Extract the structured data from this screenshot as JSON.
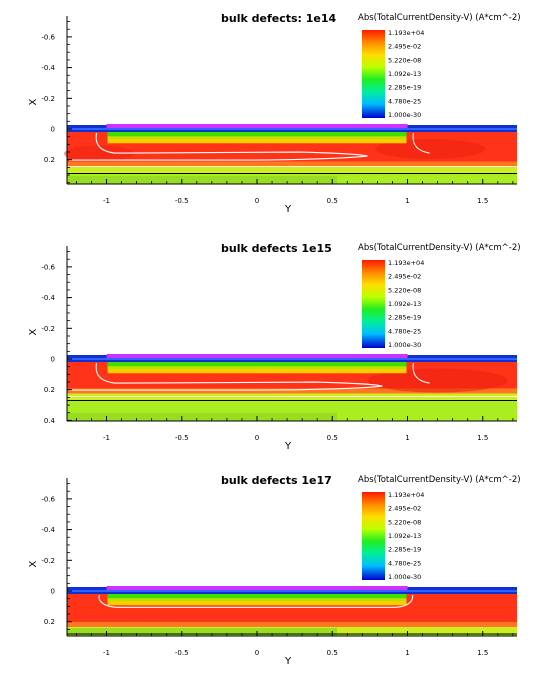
{
  "chart_data": [
    {
      "type": "heatmap",
      "title": "bulk defects: 1e14",
      "xlabel": "Y",
      "ylabel": "X",
      "colorbar_title": "Abs(TotalCurrentDensity-V) (A*cm^-2)",
      "colorbar_labels": [
        "1.193e+04",
        "2.495e-02",
        "5.220e-08",
        "1.092e-13",
        "2.285e-19",
        "4.780e-25",
        "1.000e-30"
      ],
      "x_ticks": [
        "-1",
        "-0.5",
        "0",
        "0.5",
        "1",
        "1.5"
      ],
      "y_ticks": [
        "-0.6",
        "-0.4",
        "-0.2",
        "0",
        "0.2"
      ],
      "xlim": [
        -1.3,
        1.7
      ],
      "ylim": [
        -0.75,
        0.35
      ],
      "contact_y": [
        -1.0,
        1.0
      ],
      "channel_bottom_x": 0.08,
      "contour_depth_x": 0.17,
      "contour_tip_y": 0.68,
      "bottom_line_x": 0.29
    },
    {
      "type": "heatmap",
      "title": "bulk defects 1e15",
      "xlabel": "Y",
      "ylabel": "X",
      "colorbar_title": "Abs(TotalCurrentDensity-V) (A*cm^-2)",
      "colorbar_labels": [
        "1.193e+04",
        "2.495e-02",
        "5.220e-08",
        "1.092e-13",
        "2.285e-19",
        "4.780e-25",
        "1.000e-30"
      ],
      "x_ticks": [
        "-1",
        "-0.5",
        "0",
        "0.5",
        "1",
        "1.5"
      ],
      "y_ticks": [
        "-0.6",
        "-0.4",
        "-0.2",
        "0",
        "0.2",
        "0.4"
      ],
      "xlim": [
        -1.3,
        1.7
      ],
      "ylim": [
        -0.75,
        0.4
      ],
      "contact_y": [
        -1.0,
        1.0
      ],
      "channel_bottom_x": 0.08,
      "contour_depth_x": 0.17,
      "contour_tip_y": 0.78,
      "bottom_line_x": 0.27
    },
    {
      "type": "heatmap",
      "title": "bulk defects 1e17",
      "xlabel": "Y",
      "ylabel": "X",
      "colorbar_title": "Abs(TotalCurrentDensity-V) (A*cm^-2)",
      "colorbar_labels": [
        "1.193e+04",
        "2.495e-02",
        "5.220e-08",
        "1.092e-13",
        "2.285e-19",
        "4.780e-25",
        "1.000e-30"
      ],
      "x_ticks": [
        "-1",
        "-0.5",
        "0",
        "0.5",
        "1",
        "1.5"
      ],
      "y_ticks": [
        "-0.6",
        "-0.4",
        "-0.2",
        "0",
        "0.2"
      ],
      "xlim": [
        -1.3,
        1.7
      ],
      "ylim": [
        -0.75,
        0.3
      ],
      "contact_y": [
        -1.0,
        1.0
      ],
      "channel_bottom_x": 0.08,
      "contour_depth_x": 0.1,
      "contour_tip_y": 0.0,
      "bottom_line_x": 0.28
    }
  ],
  "colors": {
    "contact": "#cc33ff",
    "oxide": "#1030d0",
    "high": "#ff3318",
    "mid_green": "#44dd00",
    "low_green": "#aaee22",
    "contour": "#ffffff"
  }
}
